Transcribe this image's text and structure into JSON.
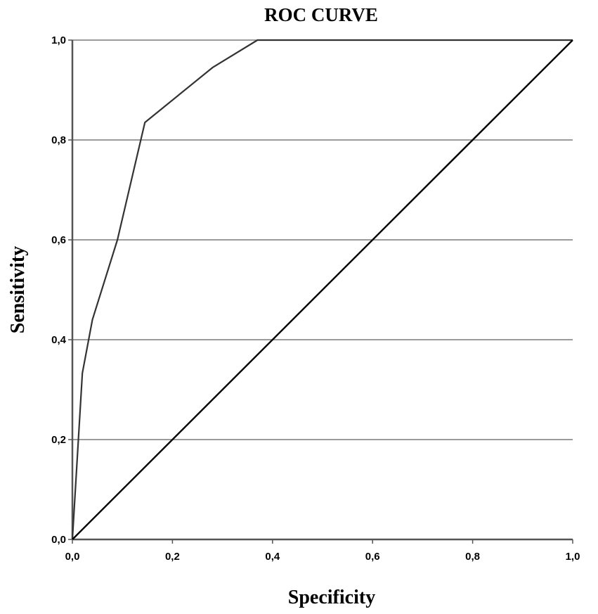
{
  "chart_data": {
    "type": "line",
    "title": "ROC CURVE",
    "xlabel": "Specificity",
    "ylabel": "Sensitivity",
    "xlim": [
      0,
      1
    ],
    "ylim": [
      0,
      1
    ],
    "grid": "horizontal",
    "x_ticks": [
      {
        "value": 0.0,
        "label": "0,0"
      },
      {
        "value": 0.2,
        "label": "0,2"
      },
      {
        "value": 0.4,
        "label": "0,4"
      },
      {
        "value": 0.6,
        "label": "0,6"
      },
      {
        "value": 0.8,
        "label": "0,8"
      },
      {
        "value": 1.0,
        "label": "1,0"
      }
    ],
    "y_ticks": [
      {
        "value": 0.0,
        "label": "0,0"
      },
      {
        "value": 0.2,
        "label": "0,2"
      },
      {
        "value": 0.4,
        "label": "0,4"
      },
      {
        "value": 0.6,
        "label": "0,6"
      },
      {
        "value": 0.8,
        "label": "0,8"
      },
      {
        "value": 1.0,
        "label": "1,0"
      }
    ],
    "series": [
      {
        "x": [
          0.0,
          0.02,
          0.04,
          0.09,
          0.145,
          0.28,
          0.37,
          1.0
        ],
        "y": [
          0.0,
          0.333,
          0.44,
          0.6,
          0.835,
          0.945,
          1.0,
          1.0
        ],
        "color": "#333333"
      },
      {
        "x": [
          0.0,
          1.0
        ],
        "y": [
          0.0,
          1.0
        ],
        "color": "#000000"
      }
    ]
  }
}
